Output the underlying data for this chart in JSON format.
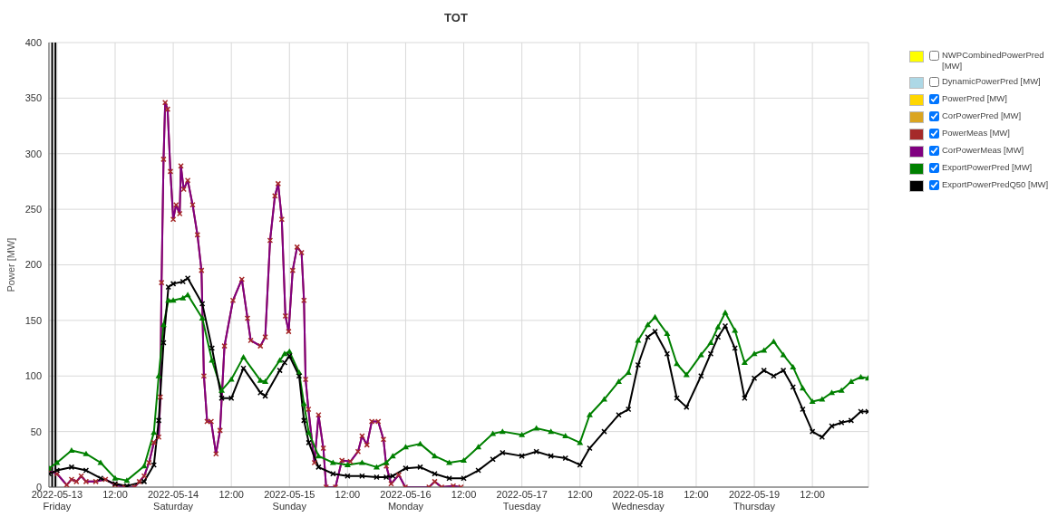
{
  "chart_data": {
    "type": "line",
    "title": "TOT",
    "ylabel": "Power [MW]",
    "xlim": [
      "2022-05-12T22:20",
      "2022-05-19T23:35"
    ],
    "xticks": [
      {
        "value": "2022-05-13T00:00",
        "label": "2022-05-13\nFriday"
      },
      {
        "value": "2022-05-13T12:00",
        "label": "12:00"
      },
      {
        "value": "2022-05-14T00:00",
        "label": "2022-05-14\nSaturday"
      },
      {
        "value": "2022-05-14T12:00",
        "label": "12:00"
      },
      {
        "value": "2022-05-15T00:00",
        "label": "2022-05-15\nSunday"
      },
      {
        "value": "2022-05-15T12:00",
        "label": "12:00"
      },
      {
        "value": "2022-05-16T00:00",
        "label": "2022-05-16\nMonday"
      },
      {
        "value": "2022-05-16T12:00",
        "label": "12:00"
      },
      {
        "value": "2022-05-17T00:00",
        "label": "2022-05-17\nTuesday"
      },
      {
        "value": "2022-05-17T12:00",
        "label": "12:00"
      },
      {
        "value": "2022-05-18T00:00",
        "label": "2022-05-18\nWednesday"
      },
      {
        "value": "2022-05-18T12:00",
        "label": "12:00"
      },
      {
        "value": "2022-05-19T00:00",
        "label": "2022-05-19\nThursday"
      },
      {
        "value": "2022-05-19T12:00",
        "label": "12:00"
      }
    ],
    "ylim": [
      0,
      400
    ],
    "yticks": [
      0,
      50,
      100,
      150,
      200,
      250,
      300,
      350,
      400
    ],
    "grid": true,
    "legend": "right",
    "line_style": "solid",
    "ref_lines": [
      {
        "axis": "x",
        "value": "2022-05-12T23:00",
        "color": "#000000"
      },
      {
        "axis": "x",
        "value": "2022-05-12T23:40",
        "color": "#000000"
      }
    ],
    "series": [
      {
        "name": "NWPCombinedPowerPred [MW]",
        "color": "#ffff00"
      },
      {
        "name": "DynamicPowerPred [MW]",
        "color": "#add8e6"
      },
      {
        "name": "PowerPred [MW]",
        "color": "#ffd700",
        "values": [
          null
        ]
      },
      {
        "name": "CorPowerPred [MW]",
        "color": "#daa520",
        "values": [
          null
        ]
      },
      {
        "name": "PowerMeas [MW]",
        "color": "#a52a2a",
        "marker": "cross",
        "x": [
          "2022-05-12T22:20",
          "2022-05-13T00:00",
          "2022-05-13T02:00",
          "2022-05-13T03:00",
          "2022-05-13T04:00",
          "2022-05-13T05:00",
          "2022-05-13T06:00",
          "2022-05-13T08:00",
          "2022-05-13T10:00",
          "2022-05-13T12:00",
          "2022-05-13T14:00",
          "2022-05-13T16:00",
          "2022-05-13T17:00",
          "2022-05-13T18:00",
          "2022-05-13T19:00",
          "2022-05-13T20:00",
          "2022-05-13T21:00",
          "2022-05-13T21:20",
          "2022-05-13T21:35",
          "2022-05-13T22:00",
          "2022-05-13T22:20",
          "2022-05-13T22:50",
          "2022-05-13T23:25",
          "2022-05-14T00:00",
          "2022-05-14T00:35",
          "2022-05-14T01:20",
          "2022-05-14T01:35",
          "2022-05-14T02:10",
          "2022-05-14T03:00",
          "2022-05-14T04:00",
          "2022-05-14T05:00",
          "2022-05-14T05:50",
          "2022-05-14T06:20",
          "2022-05-14T07:00",
          "2022-05-14T07:50",
          "2022-05-14T08:50",
          "2022-05-14T09:40",
          "2022-05-14T10:35",
          "2022-05-14T12:20",
          "2022-05-14T14:10",
          "2022-05-14T15:20",
          "2022-05-14T16:00",
          "2022-05-14T18:00",
          "2022-05-14T19:00",
          "2022-05-14T20:00",
          "2022-05-14T21:00",
          "2022-05-14T21:40",
          "2022-05-14T22:25",
          "2022-05-14T23:10",
          "2022-05-14T23:50",
          "2022-05-15T00:40",
          "2022-05-15T01:35",
          "2022-05-15T02:30",
          "2022-05-15T03:00",
          "2022-05-15T03:20",
          "2022-05-15T03:55",
          "2022-05-15T05:10",
          "2022-05-15T06:00",
          "2022-05-15T07:00",
          "2022-05-15T07:35",
          "2022-05-15T09:30",
          "2022-05-15T10:50",
          "2022-05-15T12:35",
          "2022-05-15T14:10",
          "2022-05-15T15:00",
          "2022-05-15T16:00",
          "2022-05-15T17:00",
          "2022-05-15T18:20",
          "2022-05-15T19:25",
          "2022-05-15T20:00",
          "2022-05-15T21:00",
          "2022-05-15T22:35",
          "2022-05-15T23:55",
          "2022-05-16T04:50",
          "2022-05-16T06:00",
          "2022-05-16T07:25",
          "2022-05-16T09:50",
          "2022-05-16T11:25"
        ],
        "values": [
          15,
          12,
          2,
          7,
          5,
          10,
          5,
          5,
          7,
          2,
          0,
          0,
          5,
          10,
          22,
          40,
          45,
          81,
          184,
          295,
          346,
          340,
          284,
          241,
          254,
          246,
          289,
          268,
          276,
          254,
          227,
          195,
          100,
          59,
          59,
          30,
          51,
          127,
          168,
          187,
          152,
          132,
          127,
          135,
          222,
          262,
          273,
          241,
          154,
          140,
          195,
          216,
          211,
          168,
          97,
          70,
          22,
          65,
          35,
          0,
          0,
          24,
          23,
          32,
          46,
          38,
          59,
          59,
          43,
          19,
          3,
          11,
          0,
          0,
          5,
          0,
          1,
          0
        ]
      },
      {
        "name": "CorPowerMeas [MW]",
        "color": "#800080",
        "x": [
          "2022-05-12T22:20",
          "2022-05-13T00:00",
          "2022-05-13T02:00",
          "2022-05-13T03:00",
          "2022-05-13T04:00",
          "2022-05-13T05:00",
          "2022-05-13T06:00",
          "2022-05-13T08:00",
          "2022-05-13T10:00",
          "2022-05-13T12:00",
          "2022-05-13T14:00",
          "2022-05-13T16:00",
          "2022-05-13T17:00",
          "2022-05-13T18:00",
          "2022-05-13T19:00",
          "2022-05-13T20:00",
          "2022-05-13T21:00",
          "2022-05-13T21:20",
          "2022-05-13T21:35",
          "2022-05-13T22:00",
          "2022-05-13T22:20",
          "2022-05-13T22:50",
          "2022-05-13T23:25",
          "2022-05-14T00:00",
          "2022-05-14T00:35",
          "2022-05-14T01:20",
          "2022-05-14T01:35",
          "2022-05-14T02:10",
          "2022-05-14T03:00",
          "2022-05-14T04:00",
          "2022-05-14T05:00",
          "2022-05-14T05:50",
          "2022-05-14T06:20",
          "2022-05-14T07:00",
          "2022-05-14T07:50",
          "2022-05-14T08:50",
          "2022-05-14T09:40",
          "2022-05-14T10:35",
          "2022-05-14T12:20",
          "2022-05-14T14:10",
          "2022-05-14T15:20",
          "2022-05-14T16:00",
          "2022-05-14T18:00",
          "2022-05-14T19:00",
          "2022-05-14T20:00",
          "2022-05-14T21:00",
          "2022-05-14T21:40",
          "2022-05-14T22:25",
          "2022-05-14T23:10",
          "2022-05-14T23:50",
          "2022-05-15T00:40",
          "2022-05-15T01:35",
          "2022-05-15T02:30",
          "2022-05-15T03:00",
          "2022-05-15T03:20",
          "2022-05-15T03:55",
          "2022-05-15T05:10",
          "2022-05-15T06:00",
          "2022-05-15T07:00",
          "2022-05-15T07:35",
          "2022-05-15T09:30",
          "2022-05-15T10:50",
          "2022-05-15T12:35",
          "2022-05-15T14:10",
          "2022-05-15T15:00",
          "2022-05-15T16:00",
          "2022-05-15T17:00",
          "2022-05-15T18:20",
          "2022-05-15T19:25",
          "2022-05-15T20:00",
          "2022-05-15T21:00",
          "2022-05-15T22:35",
          "2022-05-15T23:55",
          "2022-05-16T04:50",
          "2022-05-16T06:00",
          "2022-05-16T07:25",
          "2022-05-16T09:50",
          "2022-05-16T11:25"
        ],
        "values": [
          15,
          12,
          2,
          7,
          5,
          10,
          5,
          5,
          7,
          2,
          0,
          0,
          5,
          10,
          22,
          40,
          45,
          81,
          184,
          295,
          346,
          340,
          284,
          241,
          254,
          246,
          289,
          268,
          276,
          254,
          227,
          195,
          100,
          59,
          59,
          30,
          51,
          127,
          168,
          187,
          152,
          132,
          127,
          135,
          222,
          262,
          273,
          241,
          154,
          140,
          195,
          216,
          211,
          168,
          97,
          70,
          22,
          65,
          35,
          0,
          0,
          24,
          23,
          32,
          46,
          38,
          59,
          59,
          43,
          19,
          3,
          11,
          0,
          0,
          5,
          0,
          1,
          0
        ]
      },
      {
        "name": "ExportPowerPred [MW]",
        "color": "#008000",
        "marker": "triangle",
        "x": [
          "2022-05-12T22:20",
          "2022-05-13T00:00",
          "2022-05-13T03:00",
          "2022-05-13T06:00",
          "2022-05-13T09:00",
          "2022-05-13T12:00",
          "2022-05-13T14:25",
          "2022-05-13T18:00",
          "2022-05-13T20:00",
          "2022-05-13T21:00",
          "2022-05-13T22:00",
          "2022-05-13T23:00",
          "2022-05-14T00:00",
          "2022-05-14T02:00",
          "2022-05-14T03:00",
          "2022-05-14T06:00",
          "2022-05-14T08:00",
          "2022-05-14T10:00",
          "2022-05-14T12:00",
          "2022-05-14T14:30",
          "2022-05-14T18:00",
          "2022-05-14T19:00",
          "2022-05-14T22:00",
          "2022-05-14T23:00",
          "2022-05-15T00:00",
          "2022-05-15T02:00",
          "2022-05-15T03:00",
          "2022-05-15T04:00",
          "2022-05-15T06:00",
          "2022-05-15T09:00",
          "2022-05-15T12:00",
          "2022-05-15T15:00",
          "2022-05-15T18:00",
          "2022-05-15T20:00",
          "2022-05-15T21:20",
          "2022-05-16T00:00",
          "2022-05-16T03:00",
          "2022-05-16T06:00",
          "2022-05-16T09:00",
          "2022-05-16T12:00",
          "2022-05-16T15:00",
          "2022-05-16T18:00",
          "2022-05-16T20:00",
          "2022-05-17T00:00",
          "2022-05-17T03:00",
          "2022-05-17T06:00",
          "2022-05-17T09:00",
          "2022-05-17T12:00",
          "2022-05-17T14:00",
          "2022-05-17T17:00",
          "2022-05-17T20:00",
          "2022-05-17T22:00",
          "2022-05-18T00:00",
          "2022-05-18T02:00",
          "2022-05-18T03:30",
          "2022-05-18T06:00",
          "2022-05-18T08:00",
          "2022-05-18T10:00",
          "2022-05-18T13:00",
          "2022-05-18T15:00",
          "2022-05-18T16:30",
          "2022-05-18T18:00",
          "2022-05-18T20:00",
          "2022-05-18T22:00",
          "2022-05-19T00:00",
          "2022-05-19T02:00",
          "2022-05-19T04:00",
          "2022-05-19T06:00",
          "2022-05-19T08:00",
          "2022-05-19T10:00",
          "2022-05-19T12:00",
          "2022-05-19T14:00",
          "2022-05-19T16:00",
          "2022-05-19T18:00",
          "2022-05-19T20:00",
          "2022-05-19T22:00",
          "2022-05-19T23:30"
        ],
        "values": [
          17,
          22,
          33,
          30,
          22,
          8,
          6,
          19,
          49,
          100,
          146,
          168,
          168,
          170,
          173,
          152,
          114,
          87,
          97,
          117,
          96,
          95,
          114,
          120,
          122,
          103,
          75,
          49,
          28,
          22,
          20,
          22,
          18,
          22,
          28,
          36,
          39,
          28,
          22,
          24,
          36,
          48,
          50,
          47,
          53,
          50,
          46,
          40,
          65,
          79,
          95,
          103,
          132,
          146,
          153,
          138,
          111,
          101,
          119,
          130,
          144,
          157,
          141,
          112,
          120,
          123,
          131,
          119,
          108,
          89,
          77,
          79,
          85,
          87,
          95,
          99,
          98
        ]
      },
      {
        "name": "ExportPowerPredQ50 [MW]",
        "color": "#000000",
        "marker": "cross",
        "x": [
          "2022-05-12T22:20",
          "2022-05-13T00:00",
          "2022-05-13T03:00",
          "2022-05-13T06:00",
          "2022-05-13T09:00",
          "2022-05-13T12:00",
          "2022-05-13T14:25",
          "2022-05-13T18:00",
          "2022-05-13T20:00",
          "2022-05-13T21:00",
          "2022-05-13T22:00",
          "2022-05-13T23:00",
          "2022-05-14T00:00",
          "2022-05-14T02:00",
          "2022-05-14T03:00",
          "2022-05-14T06:00",
          "2022-05-14T08:00",
          "2022-05-14T10:00",
          "2022-05-14T12:00",
          "2022-05-14T14:30",
          "2022-05-14T18:00",
          "2022-05-14T19:00",
          "2022-05-14T22:00",
          "2022-05-14T23:00",
          "2022-05-15T00:00",
          "2022-05-15T02:00",
          "2022-05-15T03:00",
          "2022-05-15T04:00",
          "2022-05-15T06:00",
          "2022-05-15T09:00",
          "2022-05-15T12:00",
          "2022-05-15T15:00",
          "2022-05-15T18:00",
          "2022-05-15T20:00",
          "2022-05-15T21:20",
          "2022-05-16T00:00",
          "2022-05-16T03:00",
          "2022-05-16T06:00",
          "2022-05-16T09:00",
          "2022-05-16T12:00",
          "2022-05-16T15:00",
          "2022-05-16T18:00",
          "2022-05-16T20:00",
          "2022-05-17T00:00",
          "2022-05-17T03:00",
          "2022-05-17T06:00",
          "2022-05-17T09:00",
          "2022-05-17T12:00",
          "2022-05-17T14:00",
          "2022-05-17T17:00",
          "2022-05-17T20:00",
          "2022-05-17T22:00",
          "2022-05-18T00:00",
          "2022-05-18T02:00",
          "2022-05-18T03:30",
          "2022-05-18T06:00",
          "2022-05-18T08:00",
          "2022-05-18T10:00",
          "2022-05-18T13:00",
          "2022-05-18T15:00",
          "2022-05-18T16:30",
          "2022-05-18T18:00",
          "2022-05-18T20:00",
          "2022-05-18T22:00",
          "2022-05-19T00:00",
          "2022-05-19T02:00",
          "2022-05-19T04:00",
          "2022-05-19T06:00",
          "2022-05-19T08:00",
          "2022-05-19T10:00",
          "2022-05-19T12:00",
          "2022-05-19T14:00",
          "2022-05-19T16:00",
          "2022-05-19T18:00",
          "2022-05-19T20:00",
          "2022-05-19T22:00",
          "2022-05-19T23:30"
        ],
        "values": [
          12,
          15,
          18,
          15,
          8,
          3,
          1,
          5,
          20,
          60,
          130,
          180,
          183,
          185,
          188,
          165,
          125,
          80,
          80,
          107,
          85,
          82,
          105,
          112,
          118,
          100,
          60,
          40,
          18,
          12,
          10,
          10,
          9,
          9,
          10,
          17,
          18,
          12,
          8,
          8,
          15,
          25,
          31,
          28,
          32,
          28,
          26,
          20,
          35,
          50,
          65,
          70,
          110,
          135,
          140,
          120,
          80,
          72,
          100,
          120,
          135,
          145,
          125,
          80,
          98,
          105,
          100,
          105,
          90,
          70,
          50,
          45,
          55,
          58,
          60,
          68,
          68
        ]
      }
    ]
  }
}
